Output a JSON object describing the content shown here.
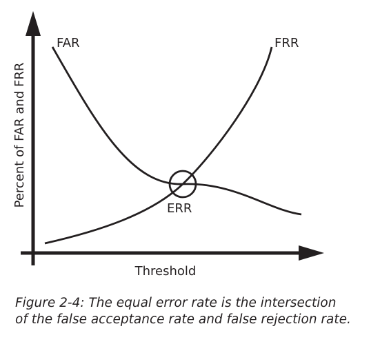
{
  "chart_data": {
    "type": "line",
    "title": "",
    "xlabel": "Threshold",
    "ylabel": "Percent of FAR and FRR",
    "grid": false,
    "legend": "none",
    "series": [
      {
        "name": "FAR",
        "label_position": "start"
      },
      {
        "name": "FRR",
        "label_position": "end"
      }
    ],
    "annotations": [
      {
        "text": "ERR",
        "marks": "intersection of FAR and FRR"
      }
    ],
    "colors": {
      "ink": "#231f20"
    }
  },
  "caption": {
    "line1": "Figure 2-4: The equal error rate is the intersection",
    "line2": "of the false acceptance rate and false rejection rate."
  }
}
